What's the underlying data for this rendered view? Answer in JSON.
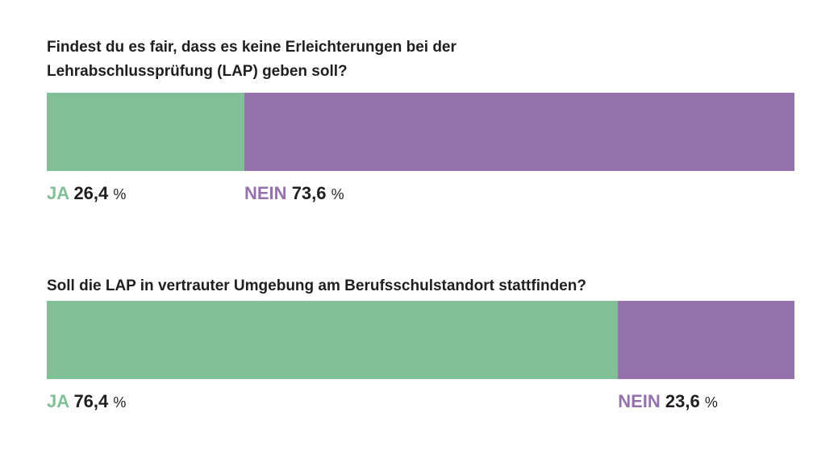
{
  "colors": {
    "ja": "#81bf97",
    "nein": "#9672ad"
  },
  "chart_data": [
    {
      "type": "bar",
      "stacked": true,
      "orientation": "horizontal",
      "title": "Findest du es fair, dass es keine Erleichterungen bei der Lehrabschlussprüfung (LAP) geben soll?",
      "series": [
        {
          "name": "JA",
          "value": 26.4,
          "display": "26,4",
          "unit": "%"
        },
        {
          "name": "NEIN",
          "value": 73.6,
          "display": "73,6",
          "unit": "%"
        }
      ]
    },
    {
      "type": "bar",
      "stacked": true,
      "orientation": "horizontal",
      "title": "Soll die LAP in vertrauter Umgebung am Berufsschulstandort stattfinden?",
      "series": [
        {
          "name": "JA",
          "value": 76.4,
          "display": "76,4",
          "unit": "%"
        },
        {
          "name": "NEIN",
          "value": 23.6,
          "display": "23,6",
          "unit": "%"
        }
      ]
    }
  ]
}
